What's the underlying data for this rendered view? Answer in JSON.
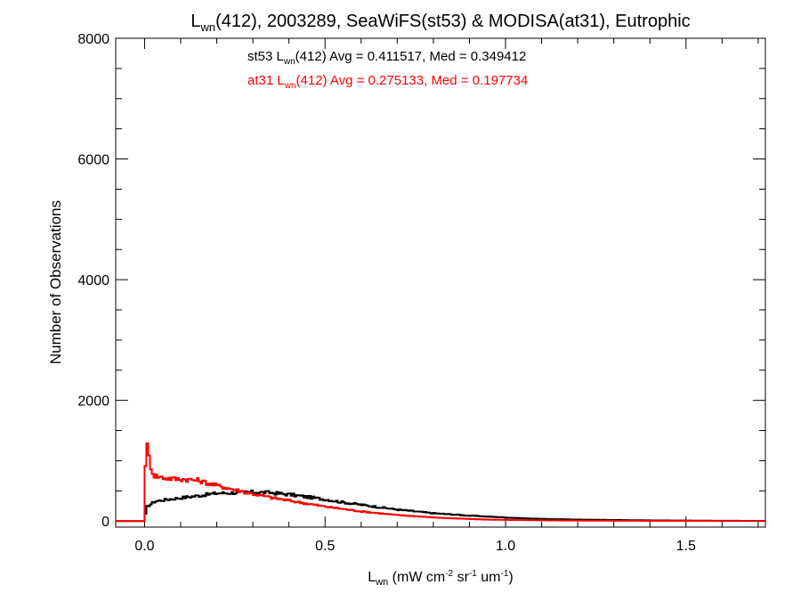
{
  "chart_data": {
    "type": "line",
    "title": {
      "main": "L",
      "main_sub": "wn",
      "rest": "(412), 2003289, SeaWiFS(st53) & MODISA(at31), Eutrophic"
    },
    "xlabel": {
      "main": "L",
      "main_sub": "wn",
      "p1": " (mW cm",
      "sup1": "-2",
      "p2": " sr",
      "sup2": "-1",
      "p3": " um",
      "sup3": "-1",
      "p4": ")"
    },
    "ylabel": "Number of Observations",
    "xlim": [
      -0.08,
      1.72
    ],
    "ylim": [
      -100,
      8000
    ],
    "xticks": [
      0.0,
      0.5,
      1.0,
      1.5
    ],
    "xtick_labels": [
      "0.0",
      "0.5",
      "1.0",
      "1.5"
    ],
    "yticks": [
      0,
      2000,
      4000,
      6000,
      8000
    ],
    "ytick_labels": [
      "0",
      "2000",
      "4000",
      "6000",
      "8000"
    ],
    "grid": false,
    "annotations": [
      {
        "color": "#000000",
        "prefix": "st53 L",
        "sub": "wn",
        "suffix": "(412) Avg = 0.411517, Med = 0.349412"
      },
      {
        "color": "#ff0000",
        "prefix": "at31 L",
        "sub": "wn",
        "suffix": "(412) Avg = 0.275133, Med = 0.197734"
      }
    ],
    "series": [
      {
        "color": "#000000",
        "x": [
          -0.08,
          0.0,
          0.005,
          0.03,
          0.08,
          0.15,
          0.2,
          0.25,
          0.3,
          0.35,
          0.4,
          0.45,
          0.5,
          0.55,
          0.6,
          0.65,
          0.7,
          0.75,
          0.8,
          0.85,
          0.9,
          0.95,
          1.0,
          1.05,
          1.1,
          1.15,
          1.2,
          1.3,
          1.4,
          1.5,
          1.6,
          1.72
        ],
        "y": [
          0,
          0,
          230,
          330,
          370,
          420,
          460,
          470,
          480,
          470,
          440,
          400,
          360,
          310,
          270,
          230,
          190,
          160,
          130,
          110,
          90,
          75,
          60,
          45,
          35,
          30,
          25,
          18,
          12,
          8,
          5,
          3
        ]
      },
      {
        "color": "#ff0000",
        "x": [
          -0.08,
          0.0,
          0.003,
          0.008,
          0.015,
          0.025,
          0.05,
          0.08,
          0.12,
          0.15,
          0.18,
          0.2,
          0.25,
          0.3,
          0.35,
          0.4,
          0.45,
          0.5,
          0.55,
          0.6,
          0.65,
          0.7,
          0.75,
          0.8,
          0.85,
          0.9,
          0.95,
          1.0,
          1.1,
          1.2,
          1.4,
          1.6,
          1.72
        ],
        "y": [
          0,
          0,
          1150,
          1250,
          950,
          760,
          720,
          700,
          690,
          670,
          620,
          590,
          520,
          450,
          390,
          340,
          290,
          240,
          200,
          160,
          130,
          100,
          80,
          60,
          45,
          35,
          25,
          20,
          12,
          8,
          4,
          2,
          1
        ]
      }
    ]
  }
}
